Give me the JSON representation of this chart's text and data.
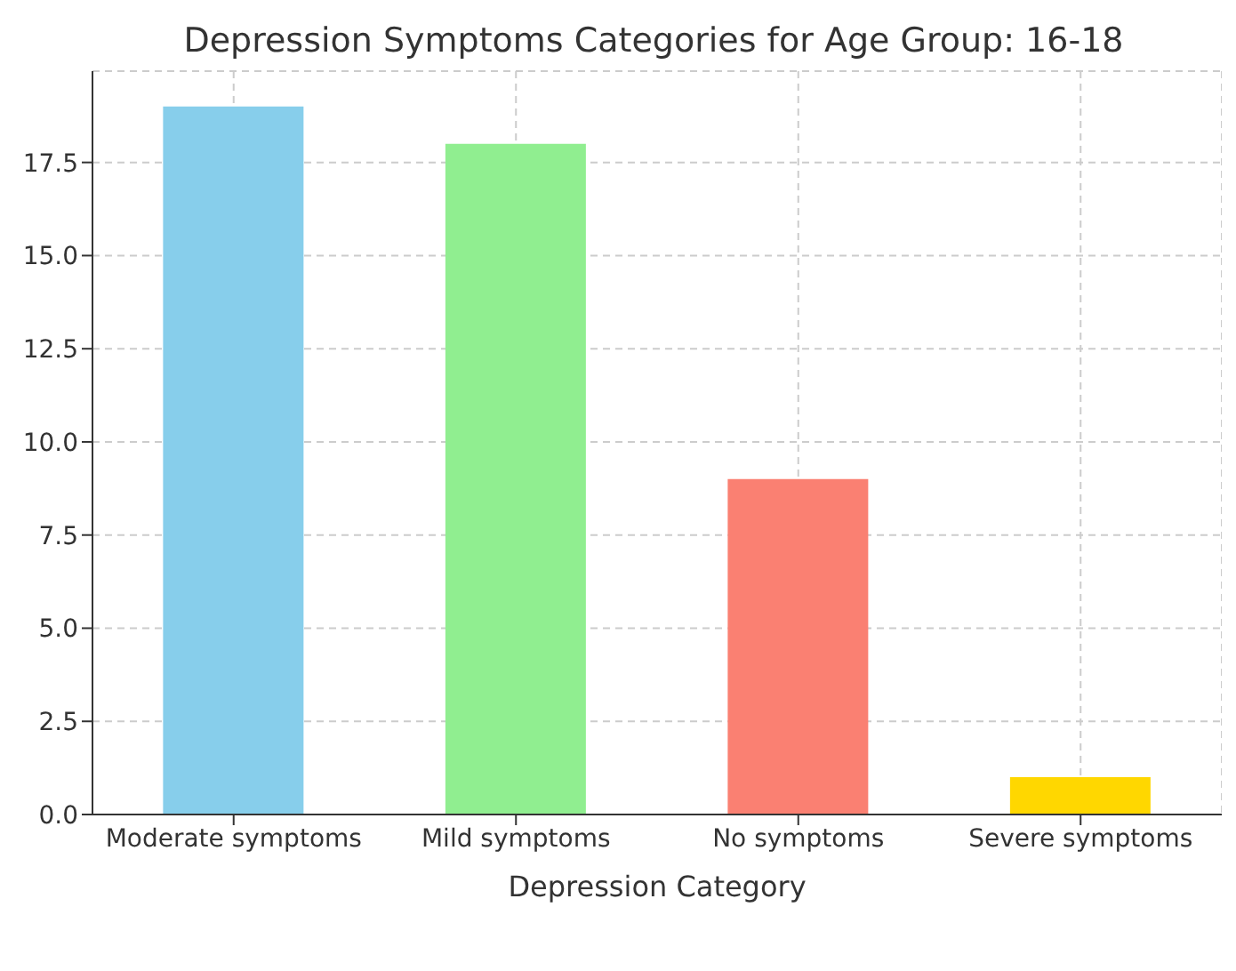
{
  "chart_data": {
    "type": "bar",
    "title": "Depression Symptoms Categories for Age Group: 16-18",
    "xlabel": "Depression Category",
    "categories": [
      "Moderate symptoms",
      "Mild symptoms",
      "No symptoms",
      "Severe symptoms"
    ],
    "values": [
      19,
      18,
      9,
      1
    ],
    "colors": [
      "#87ceeb",
      "#90ee90",
      "#fa8072",
      "#ffd700"
    ],
    "ylim": [
      0,
      19.95
    ],
    "yticks": [
      {
        "value": 0,
        "label": "0.0"
      },
      {
        "value": 2.5,
        "label": "2.5"
      },
      {
        "value": 5,
        "label": "5.0"
      },
      {
        "value": 7.5,
        "label": "7.5"
      },
      {
        "value": 10,
        "label": "10.0"
      },
      {
        "value": 12.5,
        "label": "12.5"
      },
      {
        "value": 15,
        "label": "15.0"
      },
      {
        "value": 17.5,
        "label": "17.5"
      }
    ],
    "grid": true
  }
}
